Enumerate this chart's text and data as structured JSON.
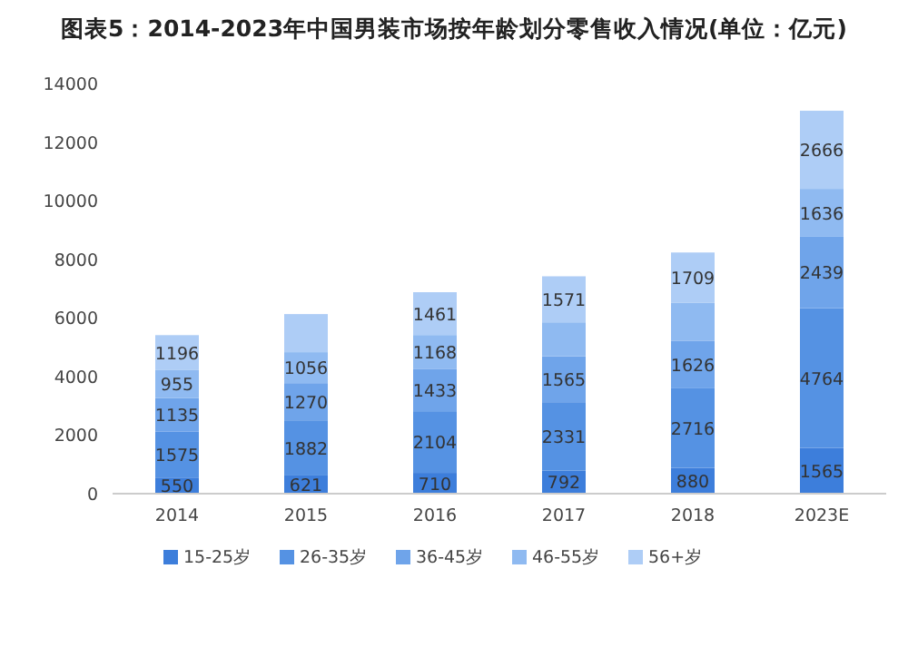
{
  "chart_data": {
    "type": "bar",
    "stacked": true,
    "title": "图表5：2014-2023年中国男装市场按年龄划分零售收入情况(单位：亿元)",
    "categories": [
      "2014",
      "2015",
      "2016",
      "2017",
      "2018",
      "2023E"
    ],
    "ylim": [
      0,
      14000
    ],
    "yticks": [
      0,
      2000,
      4000,
      6000,
      8000,
      10000,
      12000,
      14000
    ],
    "grid": false,
    "legend": "bottom",
    "series": [
      {
        "name": "15-25岁",
        "color": "#3d7edb",
        "values": [
          550,
          621,
          710,
          792,
          880,
          1565
        ],
        "value_labels": [
          "550",
          "621",
          "710",
          "792",
          "880",
          "1565"
        ]
      },
      {
        "name": "26-35岁",
        "color": "#5592e3",
        "values": [
          1575,
          1882,
          2104,
          2331,
          2716,
          4764
        ],
        "value_labels": [
          "1575",
          "1882",
          "2104",
          "2331",
          "2716",
          "4764"
        ]
      },
      {
        "name": "36-45岁",
        "color": "#6fa4ea",
        "values": [
          1135,
          1270,
          1433,
          1565,
          1626,
          2439
        ],
        "value_labels": [
          "1135",
          "1270",
          "1433",
          "1565",
          "1626",
          "2439"
        ]
      },
      {
        "name": "46-55岁",
        "color": "#8fbaf1",
        "values": [
          955,
          1056,
          1168,
          1160,
          1300,
          1636
        ],
        "value_labels": [
          "955",
          "1056",
          "1168",
          null,
          null,
          "1636"
        ]
      },
      {
        "name": "56+岁",
        "color": "#aecdf6",
        "values": [
          1196,
          1300,
          1461,
          1571,
          1709,
          2666
        ],
        "value_labels": [
          "1196",
          null,
          "1461",
          "1571",
          "1709",
          "2666"
        ]
      }
    ]
  }
}
